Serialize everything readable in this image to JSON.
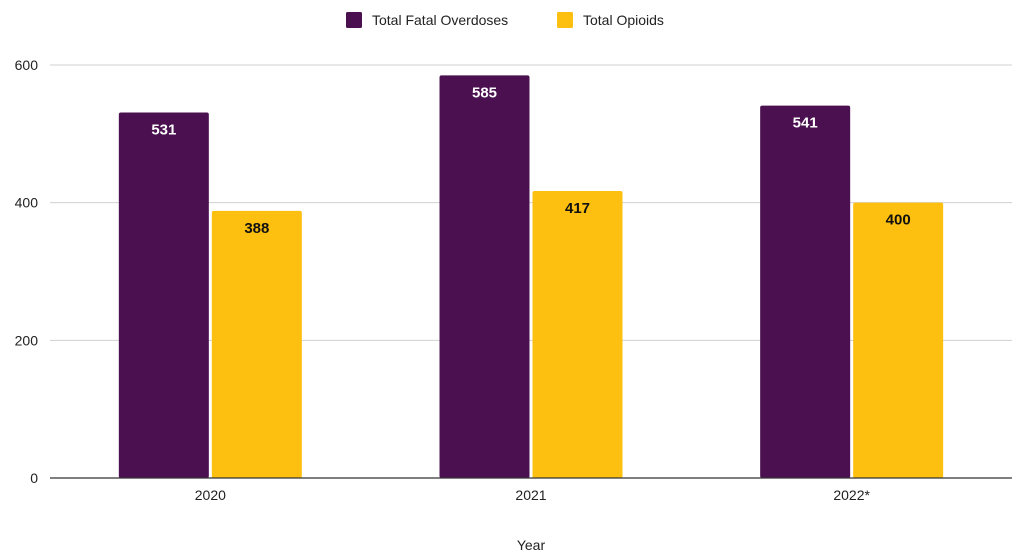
{
  "chart_data": {
    "type": "bar",
    "title": "",
    "xlabel": "Year",
    "ylabel": "",
    "categories": [
      "2020",
      "2021",
      "2022*"
    ],
    "series": [
      {
        "name": "Total Fatal Overdoses",
        "values": [
          531,
          585,
          541
        ],
        "color": "#4a1050",
        "label_color": "#ffffff"
      },
      {
        "name": "Total Opioids",
        "values": [
          388,
          417,
          400
        ],
        "color": "#fdc010",
        "label_color": "#111111"
      }
    ],
    "ylim": [
      0,
      600
    ],
    "yticks": [
      0,
      200,
      400,
      600
    ],
    "grid": true,
    "legend_position": "top-center"
  }
}
